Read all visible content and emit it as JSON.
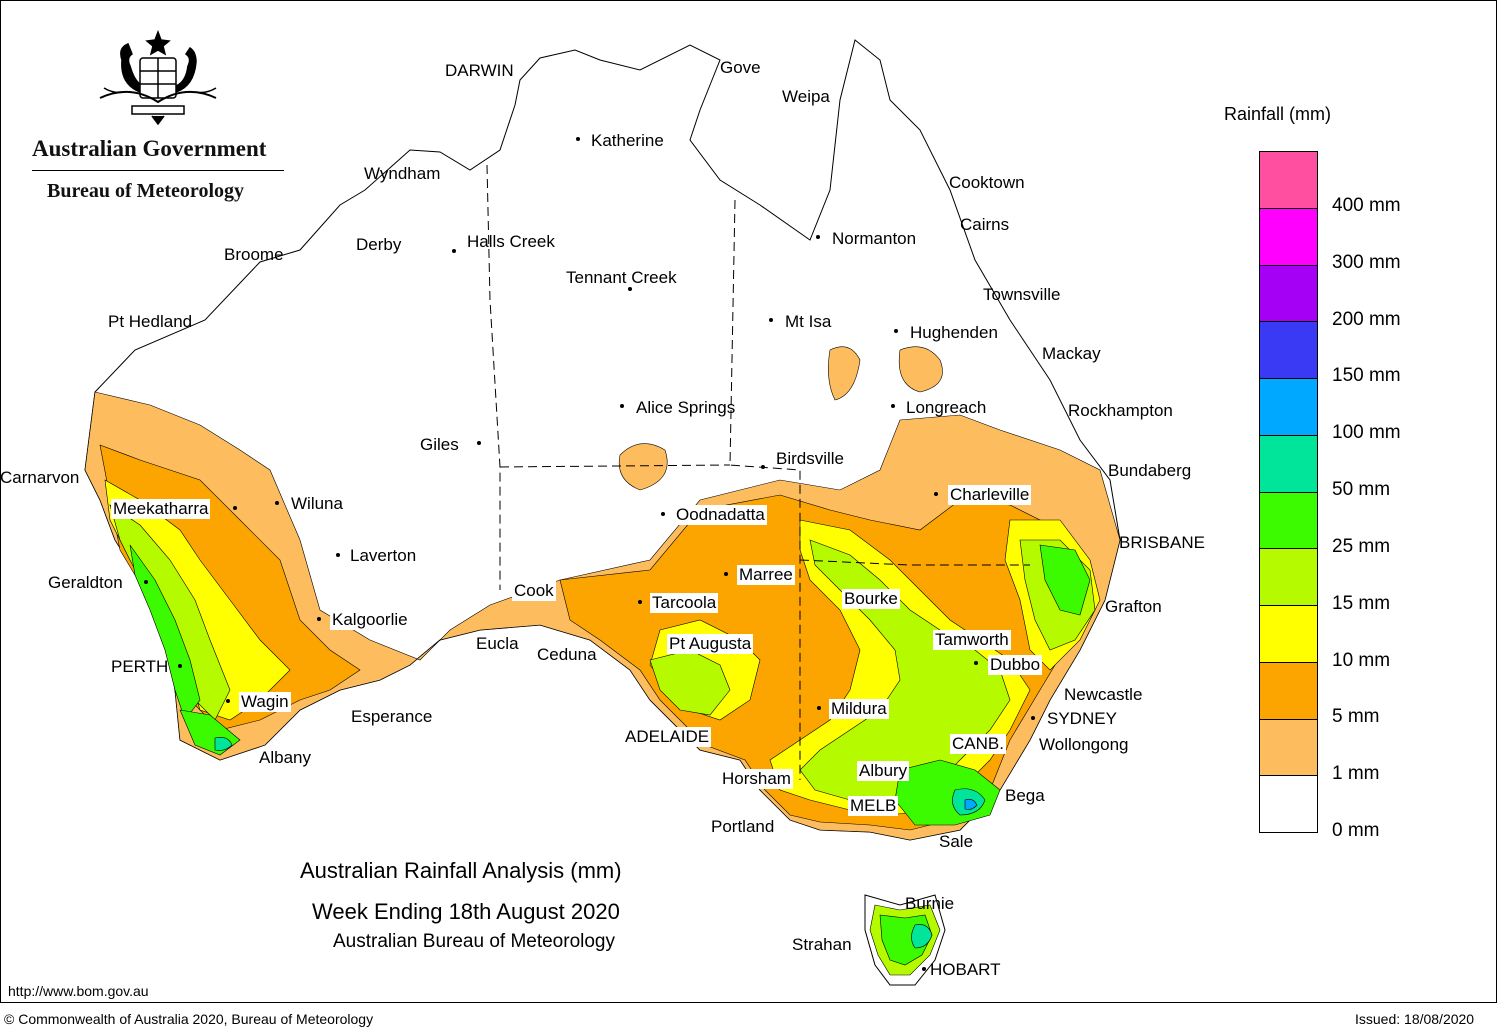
{
  "header": {
    "government": "Australian Government",
    "agency": "Bureau of Meteorology"
  },
  "map": {
    "title_line1": "Australian Rainfall Analysis (mm)",
    "title_line2": "Week Ending 18th August 2020",
    "title_line3": "Australian Bureau of Meteorology",
    "colors": {
      "0-1": "#ffffff",
      "1-5": "#fdbd5e",
      "5-10": "#fca500",
      "10-15": "#ffff00",
      "15-25": "#b6fa00",
      "25-50": "#3cfa00",
      "50-100": "#00e59a",
      "100-150": "#00a8ff",
      "150-200": "#3a3af5",
      "200-300": "#a500f5",
      "300-400": "#ff00ff",
      "400+": "#ff4fa0"
    },
    "places": {
      "darwin": "DARWIN",
      "gove": "Gove",
      "weipa": "Weipa",
      "katherine": "Katherine",
      "cooktown": "Cooktown",
      "wyndham": "Wyndham",
      "cairns": "Cairns",
      "normanton": "Normanton",
      "broome": "Broome",
      "derby": "Derby",
      "halls_creek": "Halls Creek",
      "tennant_creek": "Tennant Creek",
      "townsville": "Townsville",
      "pt_hedland": "Pt Hedland",
      "mt_isa": "Mt Isa",
      "hughenden": "Hughenden",
      "mackay": "Mackay",
      "alice_springs": "Alice Springs",
      "longreach": "Longreach",
      "rockhampton": "Rockhampton",
      "giles": "Giles",
      "birdsville": "Birdsville",
      "bundaberg": "Bundaberg",
      "carnarvon": "Carnarvon",
      "charleville": "Charleville",
      "meekatharra": "Meekatharra",
      "wiluna": "Wiluna",
      "oodnadatta": "Oodnadatta",
      "brisbane": "BRISBANE",
      "laverton": "Laverton",
      "marree": "Marree",
      "geraldton": "Geraldton",
      "cook": "Cook",
      "bourke": "Bourke",
      "tarcoola": "Tarcoola",
      "grafton": "Grafton",
      "kalgoorlie": "Kalgoorlie",
      "tamworth": "Tamworth",
      "pt_augusta": "Pt Augusta",
      "eucla": "Eucla",
      "ceduna": "Ceduna",
      "perth": "PERTH",
      "dubbo": "Dubbo",
      "newcastle": "Newcastle",
      "wagin": "Wagin",
      "mildura": "Mildura",
      "esperance": "Esperance",
      "sydney": "SYDNEY",
      "adelaide": "ADELAIDE",
      "canberra": "CANB.",
      "wollongong": "Wollongong",
      "albany": "Albany",
      "horsham": "Horsham",
      "albury": "Albury",
      "bega": "Bega",
      "melbourne": "MELB",
      "portland": "Portland",
      "sale": "Sale",
      "burnie": "Burnie",
      "strahan": "Strahan",
      "hobart": "HOBART"
    }
  },
  "legend": {
    "title": "Rainfall (mm)",
    "labels": [
      "400 mm",
      "300 mm",
      "200 mm",
      "150 mm",
      "100 mm",
      "50 mm",
      "25 mm",
      "15 mm",
      "10 mm",
      "5 mm",
      "1 mm",
      "0 mm"
    ],
    "swatch_colors": [
      "#ff4fa0",
      "#ff00ff",
      "#a500f5",
      "#3a3af5",
      "#00a8ff",
      "#00e59a",
      "#3cfa00",
      "#b6fa00",
      "#ffff00",
      "#fca500",
      "#fdbd5e",
      "#ffffff"
    ]
  },
  "footer": {
    "url": "http://www.bom.gov.au",
    "copyright": "© Commonwealth of Australia 2020, Bureau of Meteorology",
    "issued": "Issued: 18/08/2020"
  }
}
